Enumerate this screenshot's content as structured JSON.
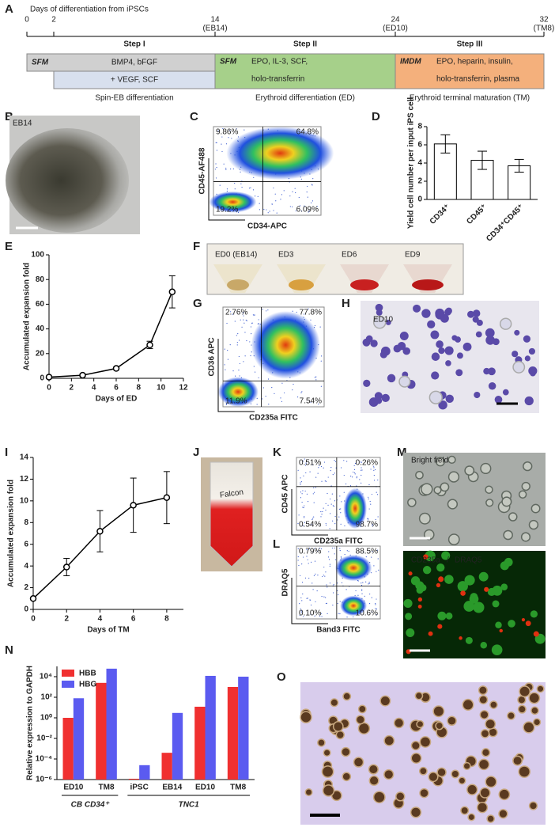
{
  "timeline": {
    "panel": "A",
    "title": "Days of differentiation from iPSCs",
    "ticks": [
      {
        "label": "0"
      },
      {
        "label": "2"
      },
      {
        "label": "14",
        "note": "(EB14)"
      },
      {
        "label": "24",
        "note": "(ED10)"
      },
      {
        "label": "32",
        "note": "(TM8)"
      }
    ],
    "steps": [
      "Step I",
      "Step II",
      "Step III"
    ],
    "stages": [
      {
        "medium": "SFM",
        "factors": [
          "BMP4, bFGF"
        ],
        "extra": "+ VEGF, SCF",
        "caption": "Spin-EB differentiation"
      },
      {
        "medium": "SFM",
        "factors": [
          "EPO, IL-3, SCF,",
          "holo-transferrin"
        ],
        "caption": "Erythroid differentiation (ED)"
      },
      {
        "medium": "IMDM",
        "factors": [
          "EPO, heparin, insulin,",
          "holo-transferrin, plasma"
        ],
        "caption": "Erythroid terminal maturation (TM)"
      }
    ]
  },
  "images": [
    {
      "panel": "B",
      "labels": [
        "EB14"
      ]
    },
    {
      "panel": "F",
      "labels": [
        "ED0 (EB14)",
        "ED3",
        "ED6",
        "ED9"
      ]
    },
    {
      "panel": "H",
      "labels": [
        "ED10"
      ]
    },
    {
      "panel": "J",
      "labels": [
        "Falcon"
      ]
    },
    {
      "panel": "M",
      "labels": [
        "Bright field",
        "CD235a",
        "/",
        "DRAQ5"
      ]
    },
    {
      "panel": "O",
      "labels": []
    }
  ],
  "flow": [
    {
      "panel": "C",
      "ylabel": "CD45-AF488",
      "xlabel": "CD34-APC",
      "quadrants": [
        "9.86%",
        "64.8%",
        "19.2%",
        "6.09%"
      ]
    },
    {
      "panel": "G",
      "ylabel": "CD36 APC",
      "xlabel": "CD235a FITC",
      "quadrants": [
        "2.76%",
        "77.8%",
        "11.9%",
        "7.54%"
      ]
    },
    {
      "panel": "K",
      "ylabel": "CD45 APC",
      "xlabel": "CD235a FITC",
      "quadrants": [
        "0.51%",
        "0.26%",
        "0.54%",
        "98.7%"
      ]
    },
    {
      "panel": "L",
      "ylabel": "DRAQ5",
      "xlabel": "Band3 FITC",
      "quadrants": [
        "0.79%",
        "88.5%",
        "0.10%",
        "10.6%"
      ]
    }
  ],
  "chart_data": [
    {
      "panel": "D",
      "type": "bar",
      "ylabel": "Yield cell number per input iPS cell",
      "categories": [
        "CD34⁺",
        "CD45⁺",
        "CD34⁺CD45⁺"
      ],
      "values": [
        6.1,
        4.3,
        3.7
      ],
      "errors": [
        1.0,
        1.0,
        0.7
      ],
      "color": "#ffffff",
      "ylim": [
        0,
        8
      ],
      "yticks": [
        0,
        2,
        4,
        6,
        8
      ]
    },
    {
      "panel": "E",
      "type": "line",
      "ylabel": "Accumulated expansion fold",
      "xlabel": "Days of ED",
      "x": [
        0,
        3,
        6,
        9,
        11
      ],
      "values": [
        1,
        2.5,
        8,
        27,
        70
      ],
      "errors": [
        0,
        1,
        1,
        3,
        13
      ],
      "color": "#000000",
      "xlim": [
        0,
        12
      ],
      "xticks": [
        0,
        2,
        4,
        6,
        8,
        10,
        12
      ],
      "ylim": [
        0,
        100
      ],
      "yticks": [
        0,
        20,
        40,
        60,
        80,
        100
      ]
    },
    {
      "panel": "I",
      "type": "line",
      "ylabel": "Accumulated expansion fold",
      "xlabel": "Days of TM",
      "x": [
        0,
        2,
        4,
        6,
        8
      ],
      "values": [
        1,
        3.9,
        7.2,
        9.6,
        10.3
      ],
      "errors": [
        0,
        0.8,
        1.9,
        2.5,
        2.4
      ],
      "color": "#000000",
      "xlim": [
        0,
        9
      ],
      "xticks": [
        0,
        2,
        4,
        6,
        8
      ],
      "ylim": [
        0,
        14
      ],
      "yticks": [
        0,
        2,
        4,
        6,
        8,
        10,
        12,
        14
      ]
    },
    {
      "panel": "N",
      "type": "groupedbar",
      "log": true,
      "ylabel": "Relative expression to GAPDH",
      "groups": [
        {
          "name": "CB CD34⁺",
          "categories": [
            "ED10",
            "TM8"
          ]
        },
        {
          "name": "TNC1",
          "categories": [
            "iPSC",
            "EB14",
            "ED10",
            "TM8"
          ]
        }
      ],
      "series": [
        {
          "name": "HBB",
          "color": "#f03030",
          "values": [
            1,
            2500,
            1.2e-06,
            0.0004,
            12,
            1000
          ]
        },
        {
          "name": "HBG",
          "color": "#5b5bf0",
          "values": [
            80,
            60000,
            2.5e-05,
            3,
            12000,
            10000
          ]
        }
      ],
      "legend": "upper left",
      "ylim": [
        1e-06,
        100000
      ],
      "yticks": [
        {
          "value": 1e-06,
          "label": "10⁻⁶"
        },
        {
          "value": 0.0001,
          "label": "10⁻⁴"
        },
        {
          "value": 0.01,
          "label": "10⁻²"
        },
        {
          "value": 1,
          "label": "10⁰"
        },
        {
          "value": 100,
          "label": "10²"
        },
        {
          "value": 10000,
          "label": "10⁴"
        }
      ]
    }
  ]
}
